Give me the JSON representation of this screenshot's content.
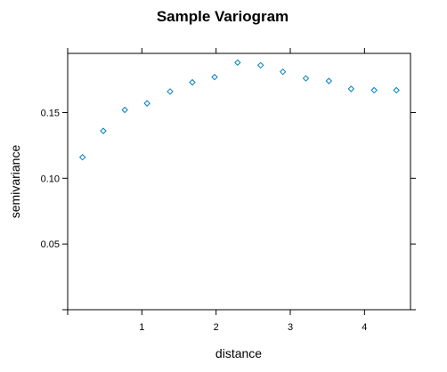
{
  "chart_data": {
    "type": "scatter",
    "title": "Sample Variogram",
    "xlabel": "distance",
    "ylabel": "semivariance",
    "xlim": [
      0.0,
      4.62
    ],
    "ylim": [
      0.0,
      0.195
    ],
    "x_ticks": [
      1,
      2,
      3,
      4
    ],
    "y_ticks": [
      0.05,
      0.1,
      0.15
    ],
    "x_tick_labels": [
      "1",
      "2",
      "3",
      "4"
    ],
    "y_tick_labels": [
      "0.05",
      "0.10",
      "0.15"
    ],
    "grid": false,
    "marker": "diamond-open",
    "colors": {
      "points": "#0080C0",
      "axis": "#000000"
    },
    "series": [
      {
        "x": [
          0.2,
          0.48,
          0.77,
          1.07,
          1.38,
          1.68,
          1.98,
          2.29,
          2.6,
          2.9,
          3.21,
          3.52,
          3.82,
          4.13,
          4.43
        ],
        "y": [
          0.116,
          0.136,
          0.152,
          0.157,
          0.166,
          0.173,
          0.177,
          0.188,
          0.186,
          0.181,
          0.176,
          0.174,
          0.168,
          0.167,
          0.167
        ]
      }
    ]
  }
}
